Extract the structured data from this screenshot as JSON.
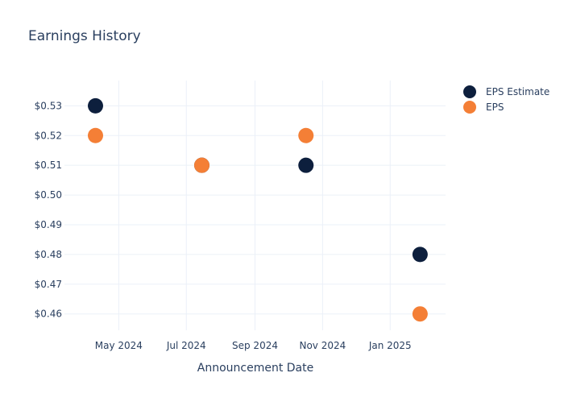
{
  "chart_data": {
    "type": "scatter",
    "title": "Earnings History",
    "xlabel": "Announcement Date",
    "ylabel": "",
    "x_type": "date",
    "xlim": [
      "2024-03-13",
      "2025-02-20"
    ],
    "ylim": [
      0.4545,
      0.5385
    ],
    "x_ticks": [
      {
        "date": "2024-05-01",
        "label": "May 2024"
      },
      {
        "date": "2024-07-01",
        "label": "Jul 2024"
      },
      {
        "date": "2024-09-01",
        "label": "Sep 2024"
      },
      {
        "date": "2024-11-01",
        "label": "Nov 2024"
      },
      {
        "date": "2025-01-01",
        "label": "Jan 2025"
      }
    ],
    "y_ticks": [
      {
        "value": 0.46,
        "label": "$0.46"
      },
      {
        "value": 0.47,
        "label": "$0.47"
      },
      {
        "value": 0.48,
        "label": "$0.48"
      },
      {
        "value": 0.49,
        "label": "$0.49"
      },
      {
        "value": 0.5,
        "label": "$0.50"
      },
      {
        "value": 0.51,
        "label": "$0.51"
      },
      {
        "value": 0.52,
        "label": "$0.52"
      },
      {
        "value": 0.53,
        "label": "$0.53"
      }
    ],
    "grid": true,
    "legend_position": "top-right",
    "series": [
      {
        "name": "EPS Estimate",
        "color": "#0d1f3d",
        "points": [
          {
            "x": "2024-04-10",
            "y": 0.53
          },
          {
            "x": "2024-07-15",
            "y": 0.51
          },
          {
            "x": "2024-10-17",
            "y": 0.51
          },
          {
            "x": "2025-01-28",
            "y": 0.48
          }
        ]
      },
      {
        "name": "EPS",
        "color": "#f47f36",
        "points": [
          {
            "x": "2024-04-10",
            "y": 0.52
          },
          {
            "x": "2024-07-15",
            "y": 0.51
          },
          {
            "x": "2024-10-17",
            "y": 0.52
          },
          {
            "x": "2025-01-28",
            "y": 0.46
          }
        ]
      }
    ]
  }
}
